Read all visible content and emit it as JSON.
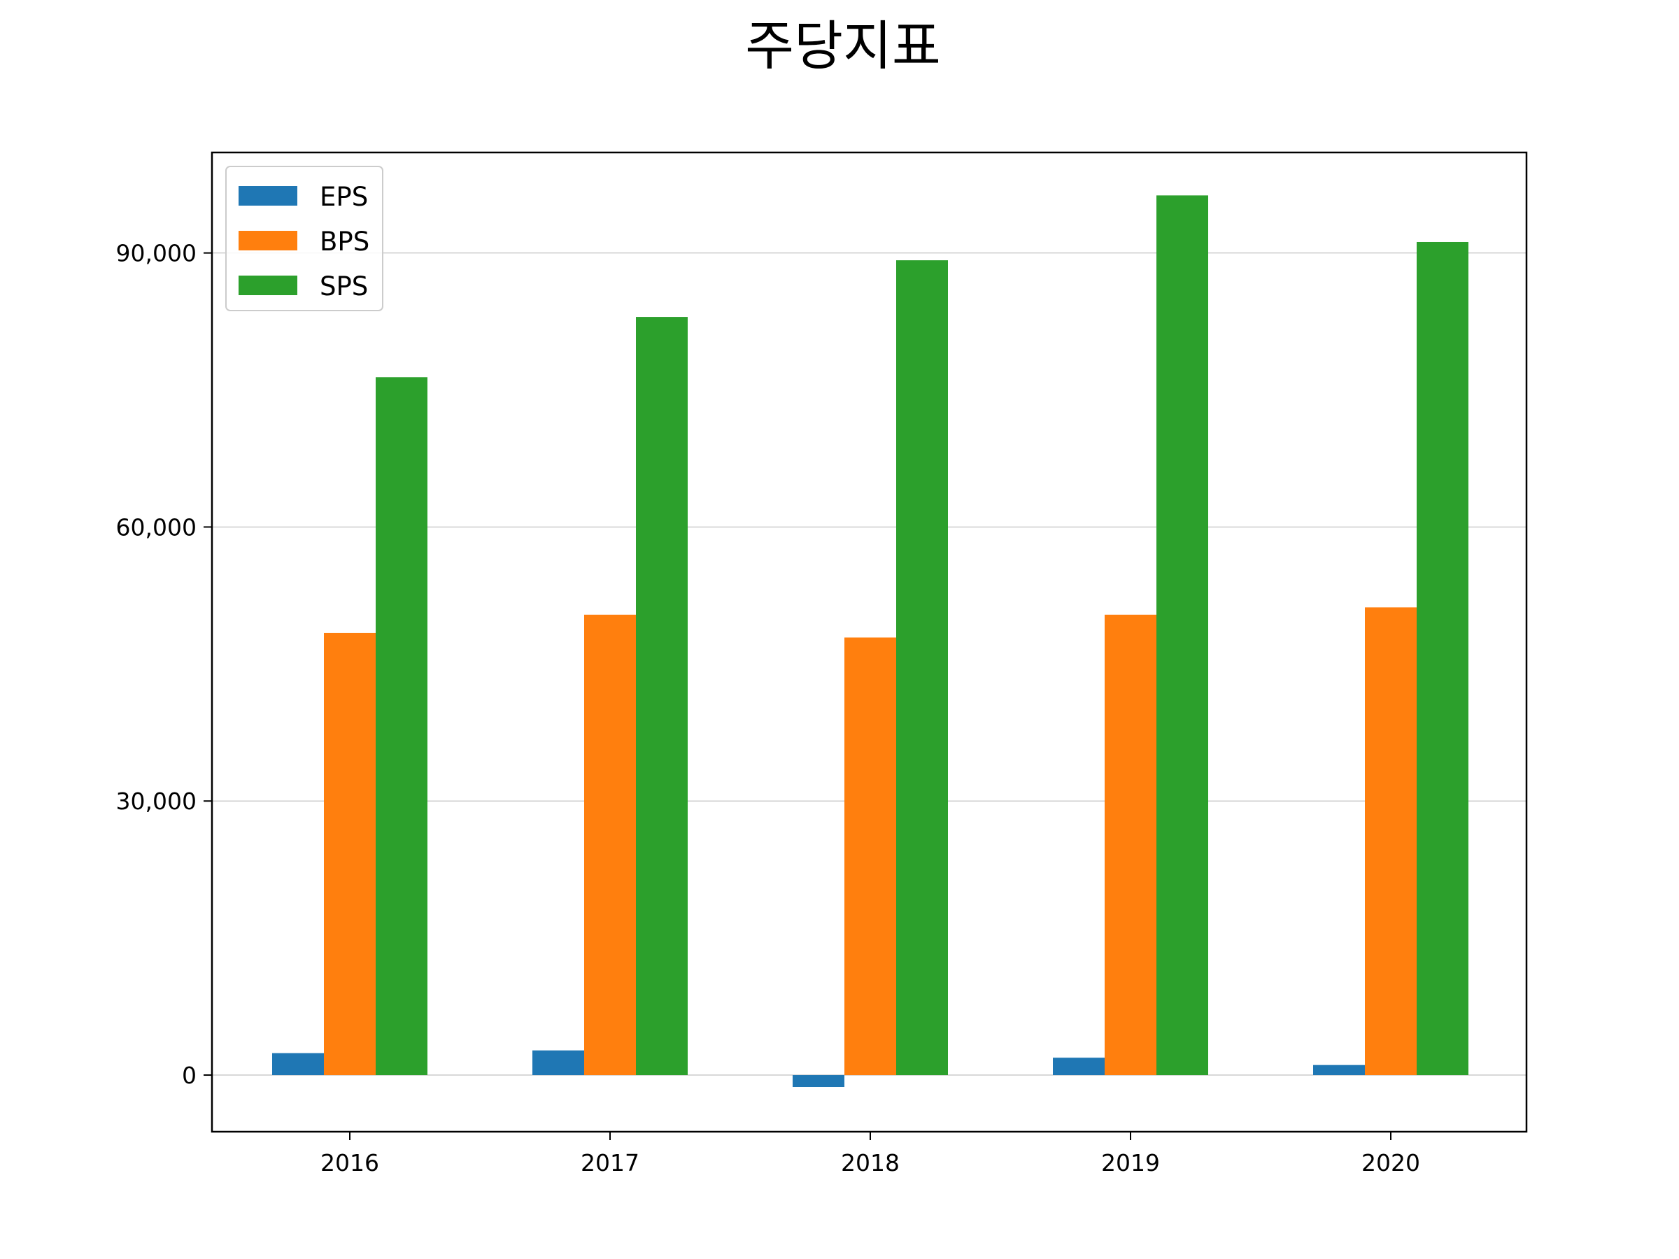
{
  "chart_data": {
    "type": "bar",
    "title": "주당지표",
    "xlabel": "",
    "ylabel": "",
    "categories": [
      "2016",
      "2017",
      "2018",
      "2019",
      "2020"
    ],
    "series": [
      {
        "name": "EPS",
        "color": "#1f77b4",
        "values": [
          2400,
          2700,
          -1300,
          1900,
          1100
        ]
      },
      {
        "name": "BPS",
        "color": "#ff7f0e",
        "values": [
          48400,
          50400,
          47900,
          50400,
          51200
        ]
      },
      {
        "name": "SPS",
        "color": "#2ca02c",
        "values": [
          76400,
          83000,
          89200,
          96300,
          91200
        ]
      }
    ],
    "ylim": [
      -6200,
      101000
    ],
    "yticks": [
      0,
      30000,
      60000,
      90000
    ],
    "ytick_labels": [
      "0",
      "30,000",
      "60,000",
      "90,000"
    ],
    "grid": "horizontal",
    "legend_position": "top-left"
  }
}
